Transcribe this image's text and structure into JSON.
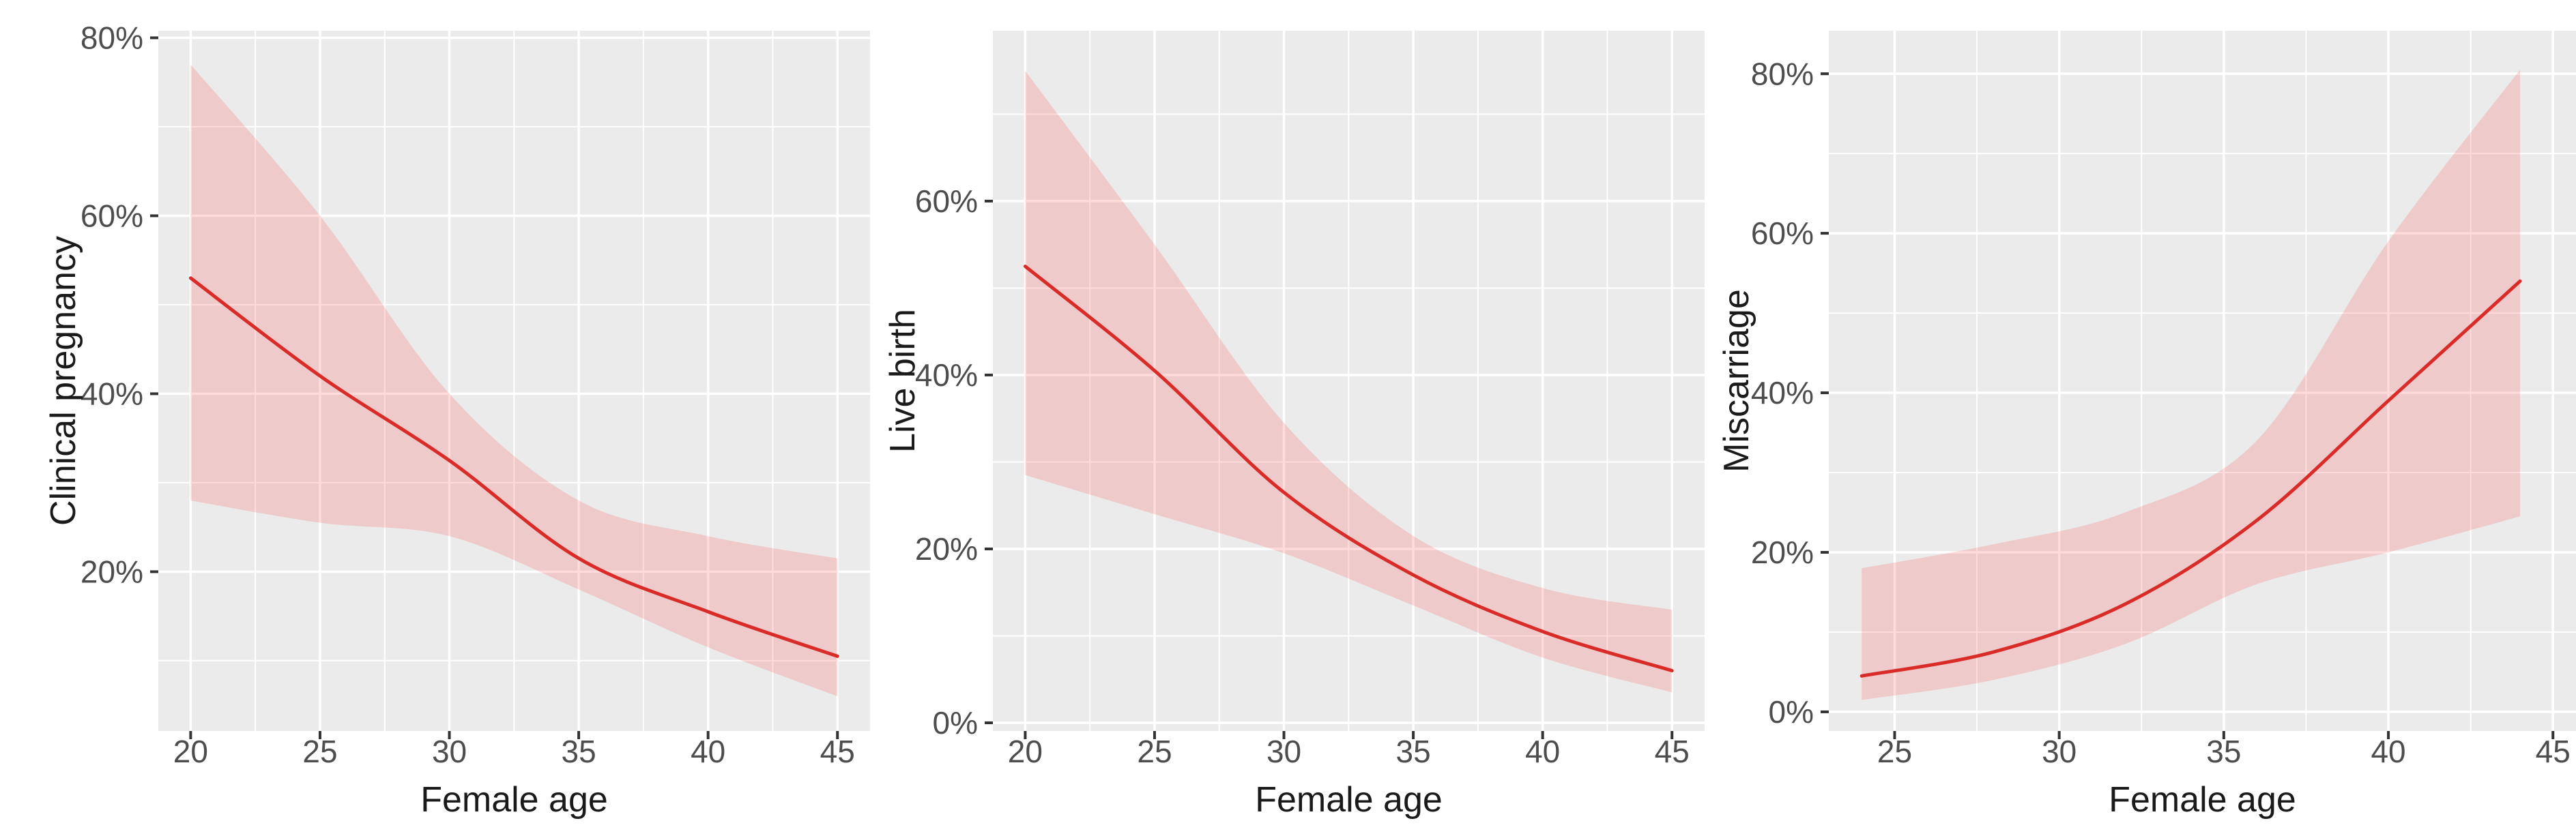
{
  "figure": {
    "description": "Three ggplot-style smoothed regression panels with 95% confidence ribbons",
    "panel_background": "#EBEBEB",
    "grid_color": "#FFFFFF",
    "line_color": "#D92C28",
    "ribbon_color": "rgba(255,32,32,0.16)",
    "tick_mark_color": "#333333",
    "tick_label_color": "#4D4D4D",
    "axis_title_color": "#1A1A1A"
  },
  "chart_data": [
    {
      "type": "line",
      "title": "",
      "xlabel": "Female age",
      "ylabel": "Clinical pregnancy",
      "x_tick_labels": [
        "20",
        "25",
        "30",
        "35",
        "40",
        "45"
      ],
      "y_tick_labels": [
        "20%",
        "40%",
        "60%",
        "80%"
      ],
      "xlim": [
        18.75,
        46.26
      ],
      "ylim": [
        2.1,
        80.8
      ],
      "grid": true,
      "legend": "none",
      "x": [
        20,
        25,
        30,
        35,
        40,
        45
      ],
      "series": [
        {
          "name": "fitted",
          "values": [
            53,
            42,
            32.5,
            21.5,
            15.5,
            10.5
          ]
        },
        {
          "name": "ci_upper",
          "values": [
            77,
            60,
            40,
            28,
            24,
            21.5
          ]
        },
        {
          "name": "ci_lower",
          "values": [
            28,
            25.5,
            24,
            18,
            11.5,
            6
          ]
        }
      ]
    },
    {
      "type": "line",
      "title": "",
      "xlabel": "Female age",
      "ylabel": "Live birth",
      "x_tick_labels": [
        "20",
        "25",
        "30",
        "35",
        "40",
        "45"
      ],
      "y_tick_labels": [
        "0%",
        "20%",
        "40%",
        "60%"
      ],
      "xlim": [
        18.75,
        46.26
      ],
      "ylim": [
        -0.94,
        79.6
      ],
      "grid": true,
      "legend": "none",
      "x": [
        20,
        25,
        30,
        35,
        40,
        45
      ],
      "series": [
        {
          "name": "fitted",
          "values": [
            52.5,
            40.5,
            26.5,
            17,
            10.5,
            6
          ]
        },
        {
          "name": "ci_upper",
          "values": [
            75,
            55,
            34.5,
            21.5,
            15.5,
            13
          ]
        },
        {
          "name": "ci_lower",
          "values": [
            28.5,
            24,
            19.5,
            13.5,
            7.5,
            3.5
          ]
        }
      ]
    },
    {
      "type": "line",
      "title": "",
      "xlabel": "Female age",
      "ylabel": "Miscarriage",
      "x_tick_labels": [
        "25",
        "30",
        "35",
        "40",
        "45"
      ],
      "y_tick_labels": [
        "0%",
        "20%",
        "40%",
        "60%",
        "80%"
      ],
      "xlim": [
        23.0,
        45.7
      ],
      "ylim": [
        -2.4,
        85.4
      ],
      "grid": true,
      "legend": "none",
      "x": [
        24,
        28,
        32,
        36,
        40,
        44
      ],
      "series": [
        {
          "name": "fitted",
          "values": [
            4.5,
            7.5,
            13.5,
            24,
            39,
            54
          ]
        },
        {
          "name": "ci_upper",
          "values": [
            18,
            21,
            25,
            34,
            59,
            80.5
          ]
        },
        {
          "name": "ci_lower",
          "values": [
            1.5,
            4,
            8.5,
            16,
            20,
            24.5
          ]
        }
      ]
    }
  ]
}
